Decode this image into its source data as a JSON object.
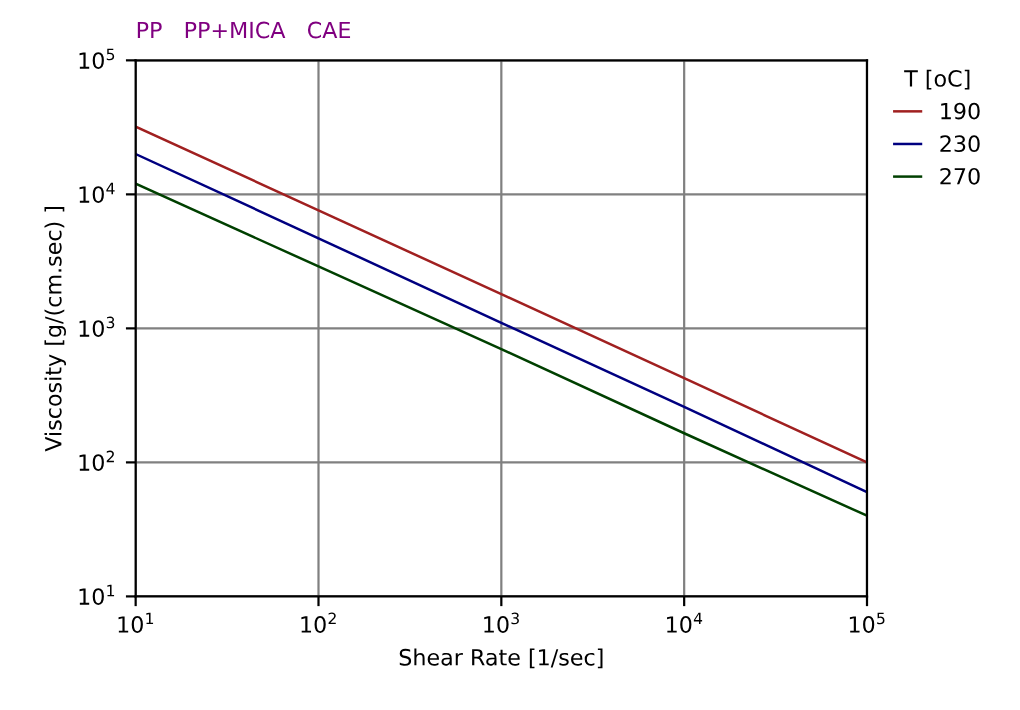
{
  "chart_data": {
    "type": "line",
    "title": "PP   PP+MICA   CAE",
    "xlabel": "Shear Rate [1/sec]",
    "ylabel": "Viscosity [g/(cm.sec) ]",
    "legend_title": "T [oC]",
    "legend": "top right",
    "grid": true,
    "log": "xy",
    "marker": "none",
    "line_style": "solid",
    "x": [
      10,
      100,
      1000,
      10000,
      100000
    ],
    "xlim": [
      10,
      100000
    ],
    "ylim": [
      10,
      100000
    ],
    "xticks": [
      {
        "value": 10,
        "label": "10$^{1}$"
      },
      {
        "value": 100,
        "label": "10$^{2}$"
      },
      {
        "value": 1000,
        "label": "10$^{3}$"
      },
      {
        "value": 10000,
        "label": "10$^{4}$"
      },
      {
        "value": 100000,
        "label": "10$^{5}$"
      }
    ],
    "yticks": [
      {
        "value": 10,
        "label": "10$^{1}$"
      },
      {
        "value": 100,
        "label": "10$^{2}$"
      },
      {
        "value": 1000,
        "label": "10$^{3}$"
      },
      {
        "value": 10000,
        "label": "10$^{4}$"
      },
      {
        "value": 100000,
        "label": "10$^{5}$"
      }
    ],
    "series": [
      {
        "name": "190",
        "color": "#a02020",
        "values": [
          32000,
          7600,
          1800,
          425,
          100
        ]
      },
      {
        "name": "230",
        "color": "#000080",
        "values": [
          20000,
          4700,
          1100,
          260,
          60
        ]
      },
      {
        "name": "270",
        "color": "#004000",
        "values": [
          12000,
          2900,
          700,
          165,
          40
        ]
      }
    ]
  }
}
